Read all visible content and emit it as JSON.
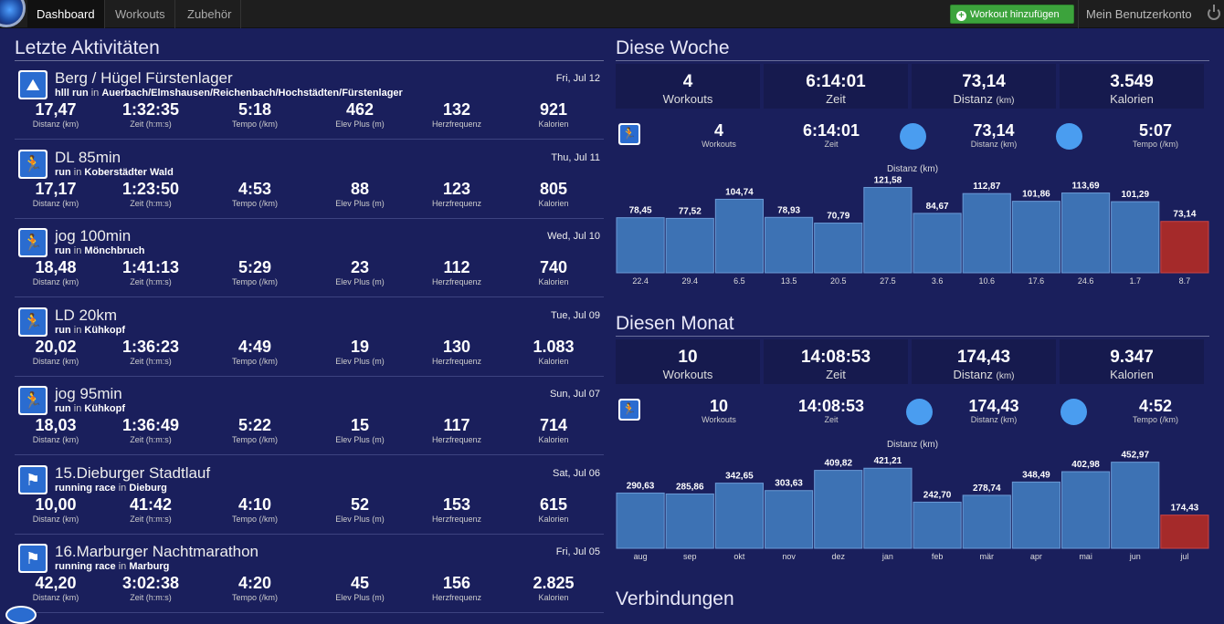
{
  "nav": {
    "tabs": [
      "Dashboard",
      "Workouts",
      "Zubehör"
    ],
    "add_workout": "Workout hinzufügen",
    "account": "Mein Benutzerkonto"
  },
  "recent": {
    "title": "Letzte Aktivitäten",
    "labels": [
      "Distanz (km)",
      "Zeit (h:m:s)",
      "Tempo (/km)",
      "Elev Plus (m)",
      "Herzfrequenz",
      "Kalorien"
    ],
    "in_word": "in",
    "items": [
      {
        "icon": "mountain-icon",
        "title": "Berg / Hügel Fürstenlager",
        "date": "Fri, Jul 12",
        "type": "hlll run",
        "place": "Auerbach/Elmshausen/Reichenbach/Hochstädten/Fürstenlager",
        "values": [
          "17,47",
          "1:32:35",
          "5:18",
          "462",
          "132",
          "921"
        ]
      },
      {
        "icon": "runner-icon",
        "title": "DL 85min",
        "date": "Thu, Jul 11",
        "type": "run",
        "place": "Koberstädter Wald",
        "values": [
          "17,17",
          "1:23:50",
          "4:53",
          "88",
          "123",
          "805"
        ]
      },
      {
        "icon": "runner-icon",
        "title": "jog 100min",
        "date": "Wed, Jul 10",
        "type": "run",
        "place": "Mönchbruch",
        "values": [
          "18,48",
          "1:41:13",
          "5:29",
          "23",
          "112",
          "740"
        ]
      },
      {
        "icon": "runner-icon",
        "title": "LD 20km",
        "date": "Tue, Jul 09",
        "type": "run",
        "place": "Kühkopf",
        "values": [
          "20,02",
          "1:36:23",
          "4:49",
          "19",
          "130",
          "1.083"
        ]
      },
      {
        "icon": "runner-icon",
        "title": "jog 95min",
        "date": "Sun, Jul 07",
        "type": "run",
        "place": "Kühkopf",
        "values": [
          "18,03",
          "1:36:49",
          "5:22",
          "15",
          "117",
          "714"
        ]
      },
      {
        "icon": "race-flag-icon",
        "title": "15.Dieburger Stadtlauf",
        "date": "Sat, Jul 06",
        "type": "running race",
        "place": "Dieburg",
        "values": [
          "10,00",
          "41:42",
          "4:10",
          "52",
          "153",
          "615"
        ]
      },
      {
        "icon": "race-flag-icon",
        "title": "16.Marburger Nachtmarathon",
        "date": "Fri, Jul 05",
        "type": "running race",
        "place": "Marburg",
        "values": [
          "42,20",
          "3:02:38",
          "4:20",
          "45",
          "156",
          "2.825"
        ]
      }
    ]
  },
  "week": {
    "title": "Diese Woche",
    "boxes": [
      {
        "value": "4",
        "label": "Workouts"
      },
      {
        "value": "6:14:01",
        "label": "Zeit"
      },
      {
        "value": "73,14",
        "label": "Distanz",
        "unit": "(km)"
      },
      {
        "value": "3.549",
        "label": "Kalorien"
      }
    ],
    "sport": [
      {
        "value": "4",
        "label": "Workouts"
      },
      {
        "value": "6:14:01",
        "label": "Zeit"
      },
      {
        "value": "73,14",
        "label": "Distanz (km)"
      },
      {
        "value": "5:07",
        "label": "Tempo (/km)"
      }
    ]
  },
  "month": {
    "title": "Diesen Monat",
    "boxes": [
      {
        "value": "10",
        "label": "Workouts"
      },
      {
        "value": "14:08:53",
        "label": "Zeit"
      },
      {
        "value": "174,43",
        "label": "Distanz",
        "unit": "(km)"
      },
      {
        "value": "9.347",
        "label": "Kalorien"
      }
    ],
    "sport": [
      {
        "value": "10",
        "label": "Workouts"
      },
      {
        "value": "14:08:53",
        "label": "Zeit"
      },
      {
        "value": "174,43",
        "label": "Distanz (km)"
      },
      {
        "value": "4:52",
        "label": "Tempo (/km)"
      }
    ]
  },
  "connections": {
    "title": "Verbindungen"
  },
  "colors": {
    "bar": "#3d72b4",
    "highlight": "#a52a2a"
  },
  "chart_data": [
    {
      "type": "bar",
      "title": "Distanz (km)",
      "categories": [
        "22.4",
        "29.4",
        "6.5",
        "13.5",
        "20.5",
        "27.5",
        "3.6",
        "10.6",
        "17.6",
        "24.6",
        "1.7",
        "8.7"
      ],
      "values": [
        78.45,
        77.52,
        104.74,
        78.93,
        70.79,
        121.58,
        84.67,
        112.87,
        101.86,
        113.69,
        101.29,
        73.14
      ],
      "labels": [
        "78,45",
        "77,52",
        "104,74",
        "78,93",
        "70,79",
        "121,58",
        "84,67",
        "112,87",
        "101,86",
        "113,69",
        "101,29",
        "73,14"
      ],
      "highlight_last": true,
      "ylim": [
        0,
        130
      ]
    },
    {
      "type": "bar",
      "title": "Distanz (km)",
      "categories": [
        "aug",
        "sep",
        "okt",
        "nov",
        "dez",
        "jan",
        "feb",
        "mär",
        "apr",
        "mai",
        "jun",
        "jul"
      ],
      "values": [
        290.63,
        285.86,
        342.65,
        303.63,
        409.82,
        421.21,
        242.7,
        278.74,
        348.49,
        402.98,
        452.97,
        174.43
      ],
      "labels": [
        "290,63",
        "285,86",
        "342,65",
        "303,63",
        "409,82",
        "421,21",
        "242,70",
        "278,74",
        "348,49",
        "402,98",
        "452,97",
        "174,43"
      ],
      "highlight_last": true,
      "ylim": [
        0,
        480
      ]
    }
  ]
}
